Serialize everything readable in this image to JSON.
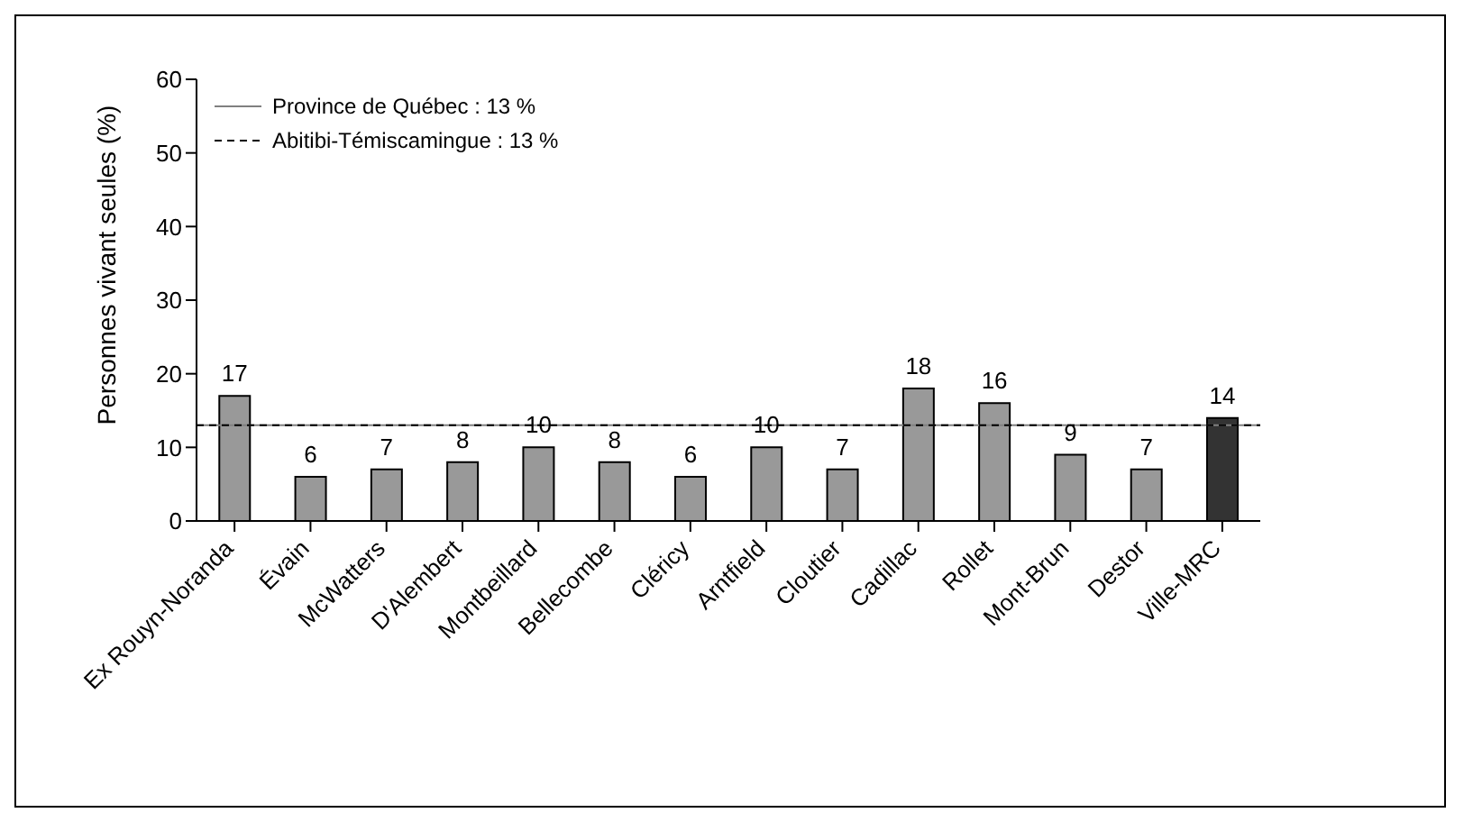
{
  "chart_data": {
    "type": "bar",
    "ylabel": "Personnes vivant seules (%)",
    "categories": [
      "Ex Rouyn-Noranda",
      "Évain",
      "McWatters",
      "D'Alembert",
      "Montbeillard",
      "Bellecombe",
      "Cléricy",
      "Arntfield",
      "Cloutier",
      "Cadillac",
      "Rollet",
      "Mont-Brun",
      "Destor",
      "Ville-MRC"
    ],
    "values": [
      17,
      6,
      7,
      8,
      10,
      8,
      6,
      10,
      7,
      18,
      16,
      9,
      7,
      14
    ],
    "colors": [
      "#999999",
      "#999999",
      "#999999",
      "#999999",
      "#999999",
      "#999999",
      "#999999",
      "#999999",
      "#999999",
      "#999999",
      "#999999",
      "#999999",
      "#999999",
      "#333333"
    ],
    "ylim": [
      0,
      60
    ],
    "yticks": [
      0,
      10,
      20,
      30,
      40,
      50,
      60
    ],
    "data_labels": true,
    "legend": "top left",
    "ref_lines": [
      {
        "axis": "y",
        "value": 13,
        "label": "Province de Québec : 13 %",
        "color": "#808080",
        "line_style": "solid"
      },
      {
        "axis": "y",
        "value": 13,
        "label": "Abitibi-Témiscamingue : 13 %",
        "color": "#000000",
        "line_style": "dashed"
      }
    ]
  }
}
